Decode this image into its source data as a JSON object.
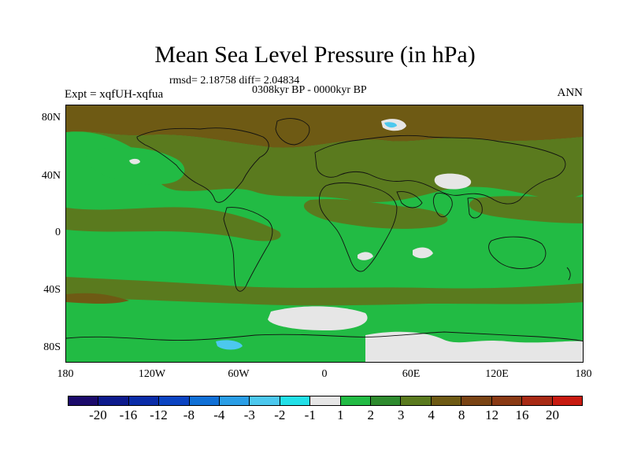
{
  "title": "Mean Sea Level Pressure (in hPa)",
  "stats": "rmsd= 2.18758 diff= 2.04834",
  "period": "0308kyr BP - 0000kyr BP",
  "experiment": "Expt = xqfUH-xqfua",
  "season": "ANN",
  "lat_labels": [
    "80N",
    "40N",
    "0",
    "40S",
    "80S"
  ],
  "lon_labels": [
    "180",
    "120W",
    "60W",
    "0",
    "60E",
    "120E",
    "180"
  ],
  "colorbar": {
    "colors": [
      "#1b0a6b",
      "#0d1a8c",
      "#0a2ca8",
      "#0b44c2",
      "#1070d6",
      "#2a9ee6",
      "#4cc8ee",
      "#22e0e8",
      "#e6e6e6",
      "#22bb44",
      "#2e8b2e",
      "#5a7a1e",
      "#6e5a14",
      "#7a4414",
      "#8a3a14",
      "#a82a14",
      "#c81a10"
    ],
    "labels": [
      "-20",
      "-16",
      "-12",
      "-8",
      "-4",
      "-3",
      "-2",
      "-1",
      "1",
      "2",
      "3",
      "4",
      "8",
      "12",
      "16",
      "20"
    ]
  },
  "colors": {
    "positive_small": "#22bb44",
    "positive_medium": "#5a7a1e",
    "positive_large": "#6e5a14",
    "near_zero": "#e6e6e6",
    "negative": "#4cc8ee"
  }
}
